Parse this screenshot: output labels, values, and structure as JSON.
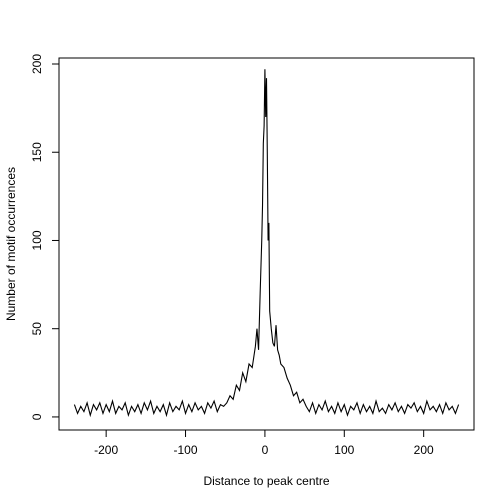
{
  "chart_data": {
    "type": "line",
    "x_label": "Distance to peak centre",
    "y_label": "Number of motif occurrences",
    "x": [
      -240,
      -236,
      -232,
      -228,
      -224,
      -220,
      -216,
      -212,
      -208,
      -204,
      -200,
      -196,
      -192,
      -188,
      -184,
      -180,
      -176,
      -172,
      -168,
      -164,
      -160,
      -156,
      -152,
      -148,
      -144,
      -140,
      -136,
      -132,
      -128,
      -124,
      -120,
      -116,
      -112,
      -108,
      -104,
      -100,
      -96,
      -92,
      -88,
      -84,
      -80,
      -76,
      -72,
      -68,
      -64,
      -60,
      -56,
      -52,
      -48,
      -44,
      -40,
      -36,
      -32,
      -28,
      -24,
      -20,
      -16,
      -12,
      -10,
      -8,
      -6,
      -4,
      -3,
      -2,
      -1,
      0,
      1,
      2,
      3,
      4,
      5,
      6,
      8,
      10,
      12,
      14,
      16,
      18,
      20,
      24,
      28,
      32,
      36,
      40,
      44,
      48,
      52,
      56,
      60,
      64,
      68,
      72,
      76,
      80,
      84,
      88,
      92,
      96,
      100,
      104,
      108,
      112,
      116,
      120,
      124,
      128,
      132,
      136,
      140,
      144,
      148,
      152,
      156,
      160,
      164,
      168,
      172,
      176,
      180,
      184,
      188,
      192,
      196,
      200,
      204,
      208,
      212,
      216,
      220,
      224,
      228,
      232,
      236,
      240,
      244
    ],
    "series": [
      {
        "name": null,
        "color": "#000000",
        "values": [
          7,
          2,
          6,
          3,
          8,
          1,
          7,
          4,
          8,
          2,
          7,
          3,
          9,
          2,
          6,
          4,
          8,
          1,
          6,
          3,
          7,
          2,
          8,
          4,
          9,
          2,
          6,
          3,
          7,
          1,
          8,
          3,
          6,
          4,
          9,
          2,
          7,
          3,
          8,
          4,
          6,
          2,
          8,
          5,
          9,
          3,
          7,
          6,
          8,
          12,
          10,
          18,
          15,
          25,
          20,
          30,
          28,
          40,
          50,
          38,
          70,
          100,
          120,
          155,
          165,
          197,
          170,
          192,
          150,
          100,
          110,
          60,
          50,
          42,
          40,
          52,
          38,
          35,
          30,
          28,
          22,
          18,
          12,
          14,
          8,
          10,
          6,
          3,
          8,
          2,
          7,
          4,
          9,
          3,
          6,
          2,
          8,
          3,
          7,
          1,
          6,
          4,
          8,
          2,
          7,
          3,
          6,
          2,
          9,
          3,
          5,
          2,
          7,
          4,
          8,
          3,
          6,
          2,
          7,
          5,
          8,
          3,
          6,
          2,
          9,
          4,
          6,
          3,
          7,
          2,
          8,
          4,
          6,
          2,
          7
        ]
      }
    ],
    "xlim": [
      -259.4,
      263.4
    ],
    "ylim": [
      -7.4,
      203.4
    ],
    "xticks": [
      -200,
      -100,
      0,
      100,
      200
    ],
    "yticks": [
      0,
      50,
      100,
      150,
      200
    ],
    "grid": false
  }
}
